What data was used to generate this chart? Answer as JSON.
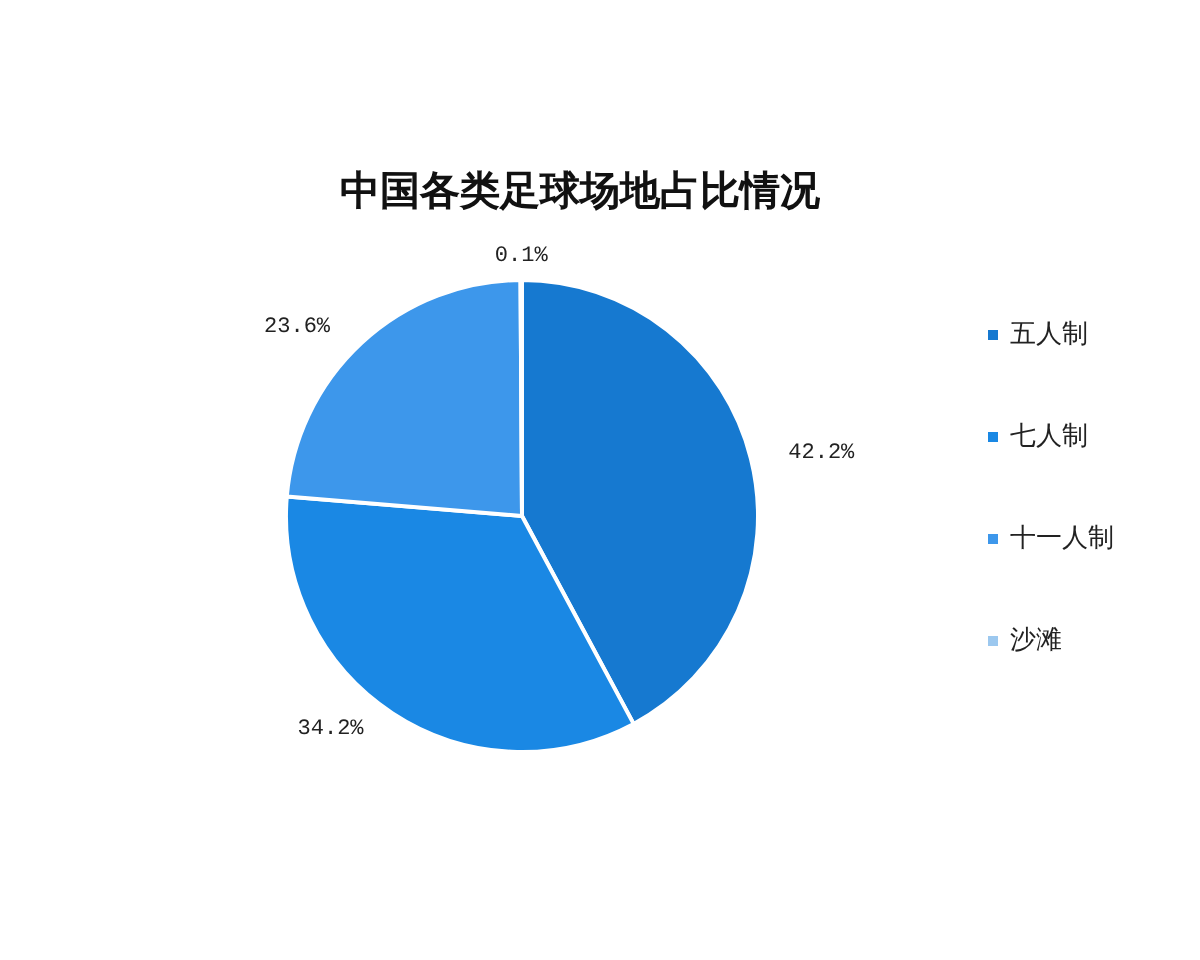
{
  "chart_data": {
    "type": "pie",
    "title": "中国各类足球场地占比情况",
    "categories": [
      "五人制",
      "七人制",
      "十一人制",
      "沙滩"
    ],
    "values": [
      42.2,
      34.2,
      23.6,
      0.1
    ],
    "value_labels": [
      "42.2%",
      "34.2%",
      "23.6%",
      "0.1%"
    ],
    "colors": [
      "#1679d0",
      "#1a88e4",
      "#3d97eb",
      "#9cc8ef"
    ],
    "legend": "right"
  }
}
